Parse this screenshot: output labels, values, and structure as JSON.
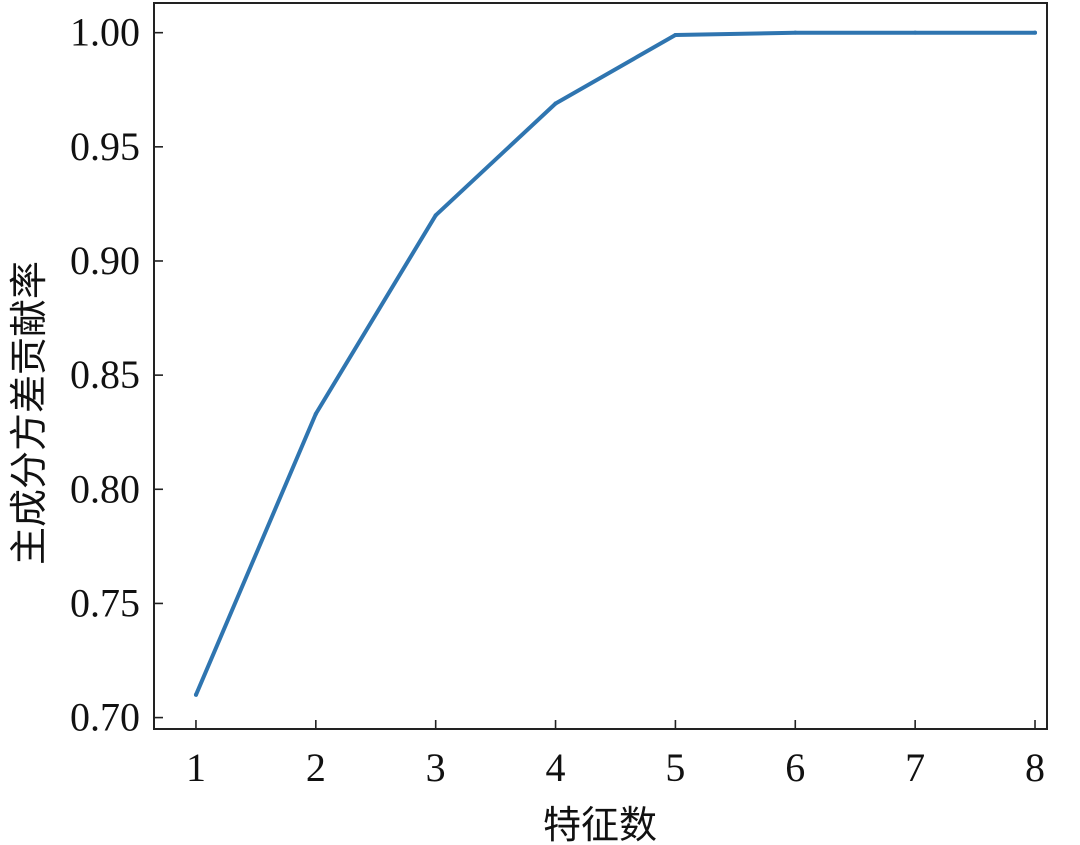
{
  "chart_data": {
    "type": "line",
    "title": "",
    "xlabel": "特征数",
    "ylabel": "主成分方差贡献率",
    "xlim": [
      0.65,
      8.1
    ],
    "ylim": [
      0.695,
      1.013
    ],
    "xticks": [
      1,
      2,
      3,
      4,
      5,
      6,
      7,
      8
    ],
    "xtick_labels": [
      "1",
      "2",
      "3",
      "4",
      "5",
      "6",
      "7",
      "8"
    ],
    "yticks": [
      0.7,
      0.75,
      0.8,
      0.85,
      0.9,
      0.95,
      1.0
    ],
    "ytick_labels": [
      "0.70",
      "0.75",
      "0.80",
      "0.85",
      "0.90",
      "0.95",
      "1.00"
    ],
    "grid": false,
    "legend": "none",
    "series": [
      {
        "color": "#2f75b0",
        "x": [
          1,
          2,
          3,
          4,
          5,
          6,
          7,
          8
        ],
        "y": [
          0.71,
          0.833,
          0.92,
          0.969,
          0.999,
          1.0,
          1.0,
          1.0
        ]
      }
    ]
  }
}
